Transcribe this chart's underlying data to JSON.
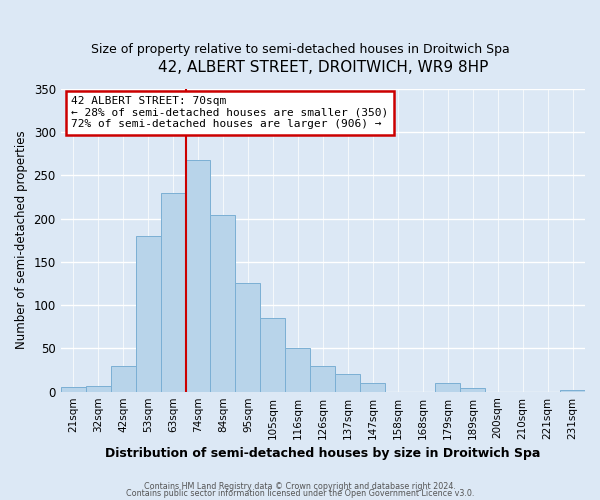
{
  "title": "42, ALBERT STREET, DROITWICH, WR9 8HP",
  "subtitle": "Size of property relative to semi-detached houses in Droitwich Spa",
  "xlabel": "Distribution of semi-detached houses by size in Droitwich Spa",
  "ylabel": "Number of semi-detached properties",
  "bin_labels": [
    "21sqm",
    "32sqm",
    "42sqm",
    "53sqm",
    "63sqm",
    "74sqm",
    "84sqm",
    "95sqm",
    "105sqm",
    "116sqm",
    "126sqm",
    "137sqm",
    "147sqm",
    "158sqm",
    "168sqm",
    "179sqm",
    "189sqm",
    "200sqm",
    "210sqm",
    "221sqm",
    "231sqm"
  ],
  "bin_values": [
    5,
    7,
    30,
    180,
    230,
    268,
    204,
    125,
    85,
    50,
    30,
    20,
    10,
    0,
    0,
    10,
    4,
    0,
    0,
    0,
    2
  ],
  "bar_color": "#b8d4ea",
  "bar_edge_color": "#7bafd4",
  "vline_color": "#cc0000",
  "annotation_box_color": "#ffffff",
  "annotation_line1": "42 ALBERT STREET: 70sqm",
  "annotation_line2": "← 28% of semi-detached houses are smaller (350)",
  "annotation_line3": "72% of semi-detached houses are larger (906) →",
  "ylim": [
    0,
    350
  ],
  "yticks": [
    0,
    50,
    100,
    150,
    200,
    250,
    300,
    350
  ],
  "footer1": "Contains HM Land Registry data © Crown copyright and database right 2024.",
  "footer2": "Contains public sector information licensed under the Open Government Licence v3.0.",
  "bg_color": "#dce8f5"
}
